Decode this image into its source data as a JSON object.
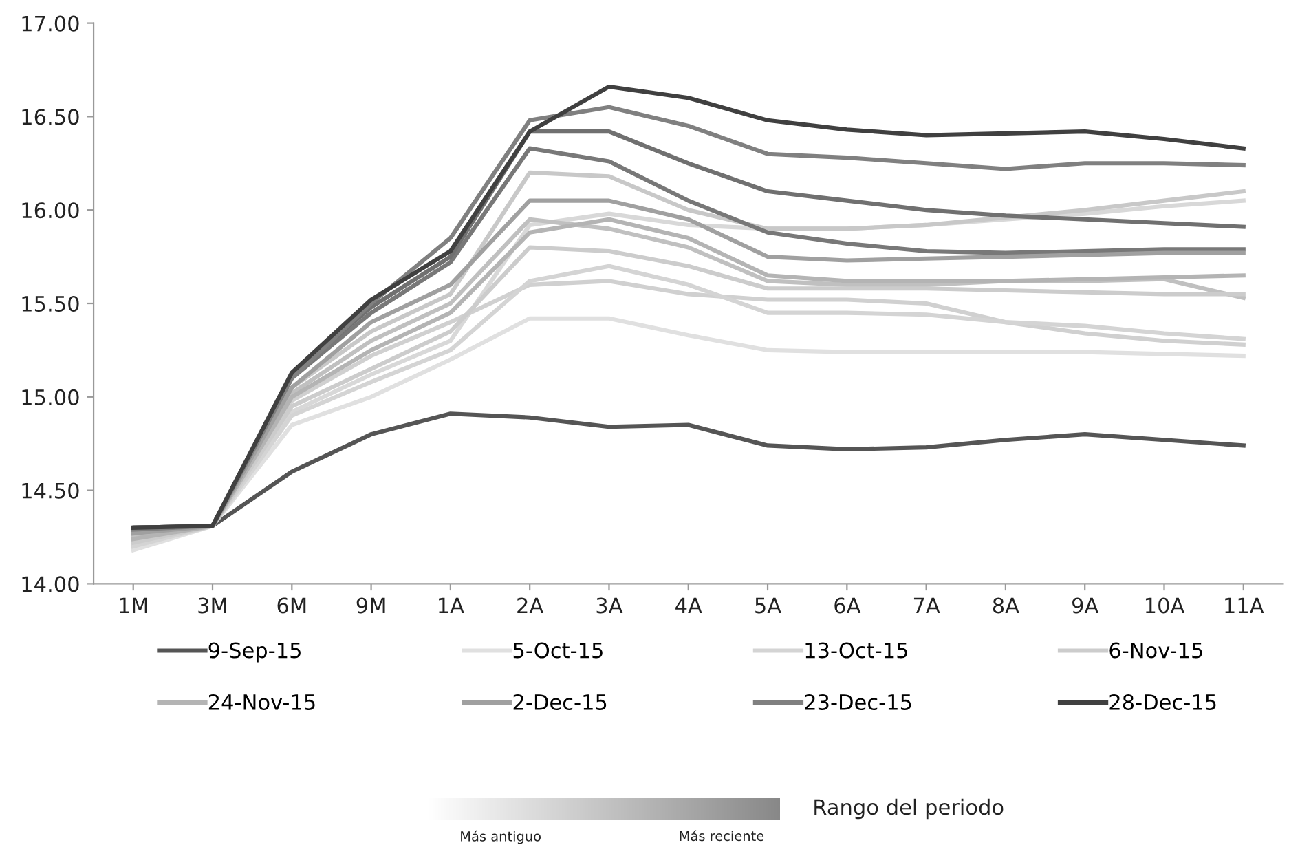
{
  "chart_data": {
    "type": "line",
    "categories": [
      "1M",
      "3M",
      "6M",
      "9M",
      "1A",
      "2A",
      "3A",
      "4A",
      "5A",
      "6A",
      "7A",
      "8A",
      "9A",
      "10A",
      "11A"
    ],
    "ylim": [
      14,
      17
    ],
    "yticks": [
      {
        "value": 14,
        "label": "14.00"
      },
      {
        "value": 14.5,
        "label": "14.50"
      },
      {
        "value": 15,
        "label": "15.00"
      },
      {
        "value": 15.5,
        "label": "15.50"
      },
      {
        "value": 16,
        "label": "16.00"
      },
      {
        "value": 16.5,
        "label": "16.50"
      },
      {
        "value": 17,
        "label": "17.00"
      }
    ],
    "grid": false,
    "legend": "bottom",
    "marker": "none",
    "line_style": "solid",
    "annotations": [
      "Rango del periodo",
      "Más antiguo",
      "Más reciente"
    ],
    "series": [
      {
        "color": "#d8d8d8",
        "values": [
          14.22,
          14.31,
          14.92,
          15.12,
          15.3,
          15.92,
          15.98,
          15.92,
          15.9,
          15.9,
          15.92,
          15.95,
          15.98,
          16.02,
          16.05
        ]
      },
      {
        "color": "#d0d0d0",
        "values": [
          14.25,
          14.31,
          14.98,
          15.22,
          15.4,
          15.6,
          15.62,
          15.55,
          15.52,
          15.52,
          15.5,
          15.4,
          15.34,
          15.3,
          15.28
        ]
      },
      {
        "color": "#c0c0c0",
        "values": [
          14.26,
          14.31,
          15.02,
          15.3,
          15.5,
          15.95,
          15.9,
          15.8,
          15.62,
          15.6,
          15.6,
          15.62,
          15.62,
          15.63,
          15.53
        ]
      },
      {
        "color": "#c8c8c8",
        "values": [
          14.28,
          14.31,
          15.05,
          15.35,
          15.55,
          16.2,
          16.18,
          16.0,
          15.9,
          15.9,
          15.92,
          15.96,
          16.0,
          16.05,
          16.1
        ]
      },
      {
        "color": "#787878",
        "values": [
          14.3,
          14.31,
          15.1,
          15.45,
          15.72,
          16.33,
          16.26,
          16.05,
          15.88,
          15.82,
          15.78,
          15.77,
          15.78,
          15.79,
          15.79
        ]
      },
      {
        "color": "#707070",
        "values": [
          14.3,
          14.31,
          15.12,
          15.48,
          15.75,
          16.42,
          16.42,
          16.25,
          16.1,
          16.05,
          16.0,
          15.97,
          15.95,
          15.93,
          15.91
        ]
      },
      {
        "name": "9-Sep-15",
        "color": "#555555",
        "values": [
          14.3,
          14.31,
          14.6,
          14.8,
          14.91,
          14.89,
          14.84,
          14.85,
          14.74,
          14.72,
          14.73,
          14.77,
          14.8,
          14.77,
          14.74
        ]
      },
      {
        "name": "5-Oct-15",
        "color": "#e0e0e0",
        "values": [
          14.18,
          14.31,
          14.85,
          15.0,
          15.2,
          15.42,
          15.42,
          15.33,
          15.25,
          15.24,
          15.24,
          15.24,
          15.24,
          15.23,
          15.22
        ]
      },
      {
        "name": "13-Oct-15",
        "color": "#d4d4d4",
        "values": [
          14.2,
          14.31,
          14.9,
          15.08,
          15.25,
          15.62,
          15.7,
          15.6,
          15.45,
          15.45,
          15.44,
          15.4,
          15.38,
          15.34,
          15.31
        ]
      },
      {
        "name": "6-Nov-15",
        "color": "#cccccc",
        "values": [
          14.22,
          14.31,
          14.95,
          15.15,
          15.35,
          15.8,
          15.78,
          15.7,
          15.58,
          15.58,
          15.58,
          15.57,
          15.56,
          15.55,
          15.55
        ]
      },
      {
        "name": "24-Nov-15",
        "color": "#b4b4b4",
        "values": [
          14.24,
          14.31,
          15.0,
          15.25,
          15.45,
          15.88,
          15.95,
          15.85,
          15.65,
          15.62,
          15.62,
          15.62,
          15.63,
          15.64,
          15.65
        ]
      },
      {
        "name": "2-Dec-15",
        "color": "#a0a0a0",
        "values": [
          14.27,
          14.31,
          15.05,
          15.4,
          15.6,
          16.05,
          16.05,
          15.95,
          15.75,
          15.73,
          15.74,
          15.75,
          15.76,
          15.77,
          15.77
        ]
      },
      {
        "name": "23-Dec-15",
        "color": "#808080",
        "values": [
          14.29,
          14.31,
          15.1,
          15.5,
          15.85,
          16.48,
          16.55,
          16.45,
          16.3,
          16.28,
          16.25,
          16.22,
          16.25,
          16.25,
          16.24
        ]
      },
      {
        "name": "28-Dec-15",
        "color": "#404040",
        "values": [
          14.3,
          14.31,
          15.13,
          15.52,
          15.78,
          16.42,
          16.66,
          16.6,
          16.48,
          16.43,
          16.4,
          16.41,
          16.42,
          16.38,
          16.33
        ]
      }
    ]
  }
}
